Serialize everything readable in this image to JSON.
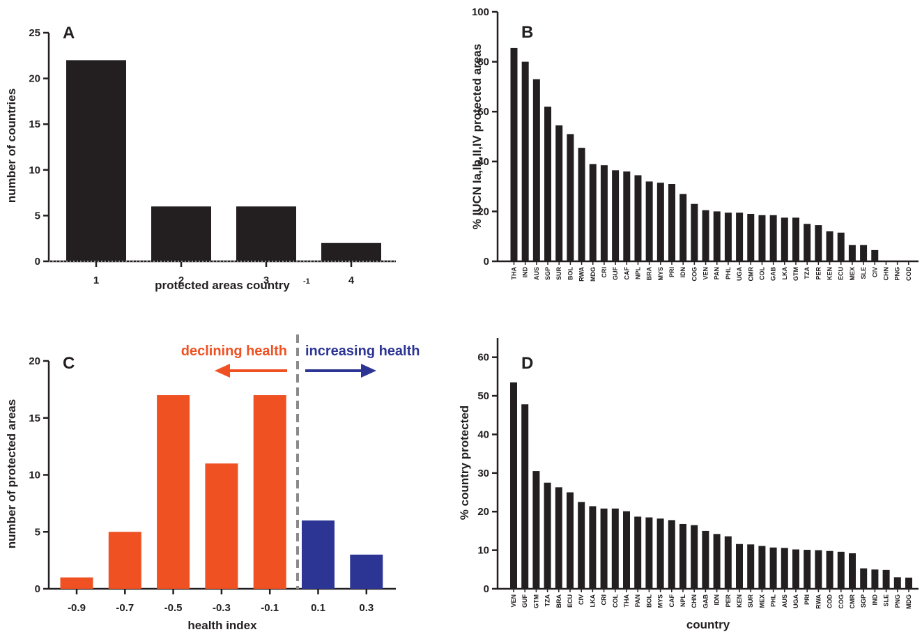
{
  "colors": {
    "dark": "#231f20",
    "declining": "#ef5123",
    "increasing": "#2c3594",
    "divider": "#8a8a8a"
  },
  "chart_data": [
    {
      "panel": "A",
      "type": "bar",
      "categories": [
        "1",
        "2",
        "3",
        "4"
      ],
      "values": [
        22,
        6,
        6,
        2
      ],
      "xlabel": "protected areas country",
      "xlabel_sup": "-1",
      "ylabel": "number of countries",
      "ylim": [
        0,
        25
      ],
      "yticks": [
        0,
        5,
        10,
        15,
        20,
        25
      ],
      "grid": false
    },
    {
      "panel": "B",
      "type": "bar",
      "categories": [
        "THA",
        "IND",
        "AUS",
        "SGP",
        "SUR",
        "BOL",
        "RWA",
        "MDG",
        "CRI",
        "GUF",
        "CAF",
        "NPL",
        "BRA",
        "MYS",
        "PRI",
        "IDN",
        "COG",
        "VEN",
        "PAN",
        "PHL",
        "UGA",
        "CMR",
        "COL",
        "GAB",
        "LKA",
        "GTM",
        "TZA",
        "PER",
        "KEN",
        "ECU",
        "MEX",
        "SLE",
        "CIV",
        "CHN",
        "PNG",
        "COD"
      ],
      "values": [
        85.5,
        80,
        73,
        62,
        54.5,
        51,
        45.5,
        39,
        38.5,
        36.5,
        36,
        34.5,
        32,
        31.5,
        31,
        27,
        23,
        20.5,
        20,
        19.5,
        19.5,
        19,
        18.5,
        18.5,
        17.5,
        17.5,
        15,
        14.5,
        12,
        11.5,
        6.5,
        6.5,
        4.5,
        0,
        0,
        0
      ],
      "xlabel": "",
      "ylabel": "% IUCN Ia,Ib,II,IV protected areas",
      "ylim": [
        0,
        100
      ],
      "yticks": [
        0,
        20,
        40,
        60,
        80,
        100
      ],
      "grid": false
    },
    {
      "panel": "C",
      "type": "bar",
      "categories": [
        "-0.9",
        "-0.7",
        "-0.5",
        "-0.3",
        "-0.1",
        "0.1",
        "0.3"
      ],
      "values": [
        1,
        5,
        17,
        11,
        17,
        6,
        3
      ],
      "bar_groups": [
        "declining",
        "declining",
        "declining",
        "declining",
        "declining",
        "increasing",
        "increasing"
      ],
      "xlabel": "health index",
      "ylabel": "number of protected areas",
      "ylim": [
        0,
        20
      ],
      "yticks": [
        0,
        5,
        10,
        15,
        20
      ],
      "annotations": {
        "declining": "declining health",
        "increasing": "increasing health"
      },
      "grid": false
    },
    {
      "panel": "D",
      "type": "bar",
      "categories": [
        "VEN",
        "GUF",
        "GTM",
        "TZA",
        "BRA",
        "ECU",
        "CIV",
        "LKA",
        "CRI",
        "COL",
        "THA",
        "PAN",
        "BOL",
        "MYS",
        "CAF",
        "NPL",
        "CHN",
        "GAB",
        "IDN",
        "PER",
        "KEN",
        "SUR",
        "MEX",
        "PHL",
        "AUS",
        "UGA",
        "PRI",
        "RWA",
        "COD",
        "COG",
        "CMR",
        "SGP",
        "IND",
        "SLE",
        "PNG",
        "MDG"
      ],
      "values": [
        53.5,
        47.8,
        30.5,
        27.5,
        26.3,
        25,
        22.5,
        21.4,
        20.8,
        20.8,
        20.1,
        18.7,
        18.5,
        18.2,
        17.8,
        16.8,
        16.5,
        15,
        14.2,
        13.6,
        11.6,
        11.5,
        11.1,
        10.7,
        10.6,
        10.2,
        10.1,
        10,
        9.8,
        9.6,
        9.2,
        5.3,
        5,
        4.9,
        3,
        2.9
      ],
      "xlabel": "country",
      "ylabel": "% country protected",
      "ylim": [
        0,
        65
      ],
      "yticks": [
        0,
        10,
        20,
        30,
        40,
        50,
        60
      ],
      "grid": false
    }
  ]
}
